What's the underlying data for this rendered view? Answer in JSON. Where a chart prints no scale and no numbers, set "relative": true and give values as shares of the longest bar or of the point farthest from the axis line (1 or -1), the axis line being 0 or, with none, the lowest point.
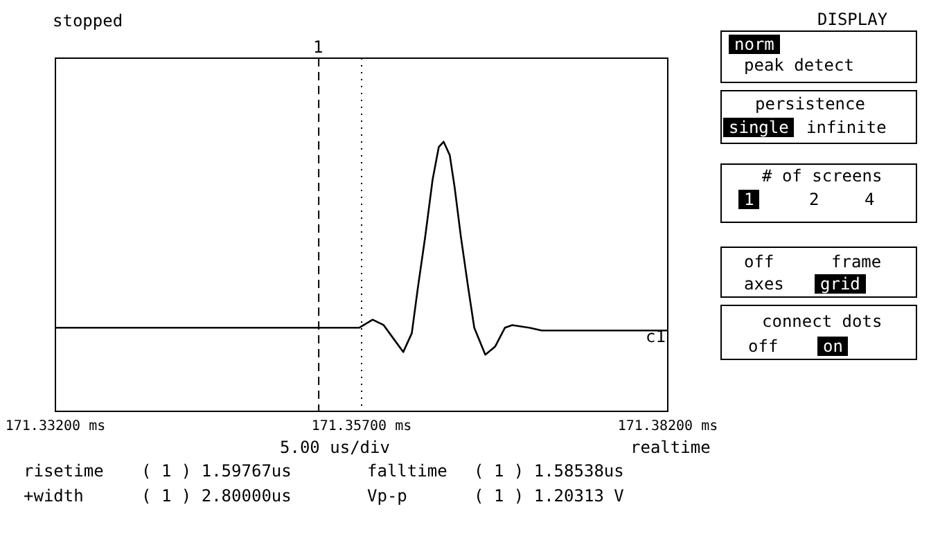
{
  "chart_data": {
    "type": "line",
    "relative": true,
    "color": "#000000",
    "x": [
      171.332,
      171.3545,
      171.3568,
      171.3579,
      171.3588,
      171.3596,
      171.3604,
      171.3611,
      171.3616,
      171.3622,
      171.3628,
      171.3633,
      171.3637,
      171.3642,
      171.3646,
      171.3651,
      171.3657,
      171.3662,
      171.3671,
      171.3679,
      171.3687,
      171.3693,
      171.3707,
      171.3717,
      171.382
    ],
    "values": [
      0.31,
      0.31,
      0.31,
      0.34,
      0.32,
      0.27,
      0.22,
      0.29,
      0.46,
      0.65,
      0.86,
      0.98,
      1,
      0.95,
      0.83,
      0.65,
      0.46,
      0.31,
      0.21,
      0.24,
      0.31,
      0.32,
      0.31,
      0.3,
      0.3
    ],
    "xlim": [
      171.332,
      171.382
    ],
    "xticks": [
      {
        "value": 171.332,
        "label": "171.33200 ms"
      },
      {
        "value": 171.357,
        "label": "171.35700 ms"
      },
      {
        "value": 171.382,
        "label": "171.38200 ms"
      }
    ],
    "grid": "x",
    "marker": "none",
    "line_style": "solid",
    "ref_lines": [
      {
        "axis": "x",
        "value": 171.3535,
        "line_style": "dashed"
      }
    ],
    "annotations": [
      "stopped",
      "5.00 us/div",
      "realtime",
      "risetime",
      "( 1 ) 1.59767us",
      "falltime",
      "( 1 ) 1.58538us",
      "+width",
      "( 1 ) 2.80000us",
      "Vp-p",
      "( 1 ) 1.20313 V",
      "DISPLAY",
      "norm",
      "peak detect",
      "persistence",
      "single",
      "infinite",
      "# of screens",
      "1",
      "2",
      "4",
      "off",
      "frame",
      "axes",
      "grid",
      "connect dots",
      "off",
      "on",
      "c1",
      "1"
    ]
  }
}
